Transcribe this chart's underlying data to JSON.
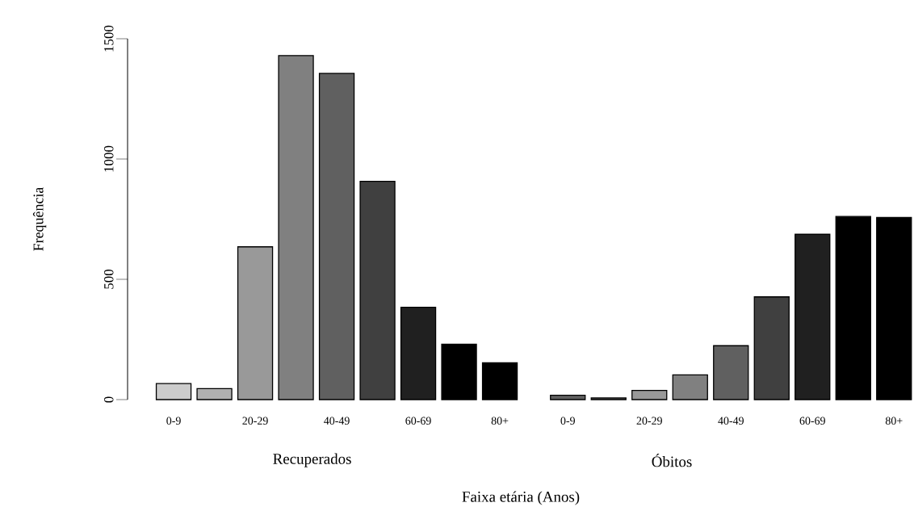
{
  "chart_data": [
    {
      "type": "bar",
      "ylabel": "Frequência",
      "xlabel": "Recuperados",
      "annotations": [
        "Faixa etária (Anos)"
      ],
      "categories": [
        "0-9",
        null,
        "20-29",
        null,
        "40-49",
        null,
        "60-69",
        null,
        "80+"
      ],
      "values": [
        67,
        46,
        635,
        1430,
        1356,
        907,
        384,
        230,
        153
      ],
      "colors": [
        "#cccccc",
        "#b0b0b0",
        "#999999",
        "#808080",
        "#606060",
        "#404040",
        "#202020",
        "#000000",
        "#000000"
      ],
      "ylim": [
        0,
        1500
      ],
      "yticks": [
        0,
        500,
        1000,
        1500
      ]
    },
    {
      "type": "bar",
      "xlabel": "Óbitos",
      "categories": [
        "0-9",
        null,
        "20-29",
        null,
        "40-49",
        null,
        "60-69",
        null,
        "80+"
      ],
      "values": [
        18,
        7,
        38,
        103,
        224,
        427,
        687,
        761,
        757
      ],
      "colors": [
        "#606060",
        "#505050",
        "#999999",
        "#808080",
        "#606060",
        "#404040",
        "#202020",
        "#000000",
        "#000000"
      ],
      "ylim": [
        0,
        1500
      ],
      "tick_labels": "x"
    }
  ]
}
